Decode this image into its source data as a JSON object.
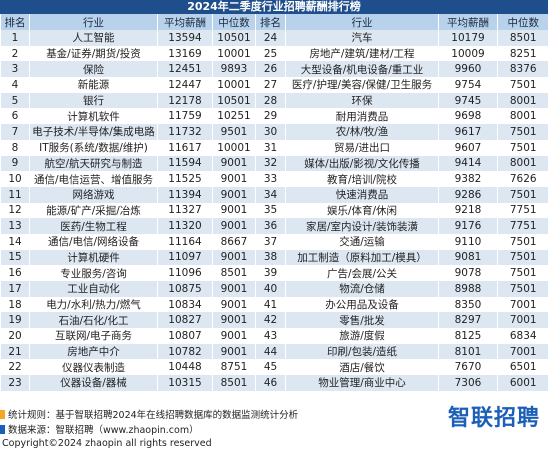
{
  "title": "2024年二季度行业招聘薪酬排行榜",
  "header": [
    "排名",
    "行业",
    "平均薪酬",
    "中位数",
    "排名",
    "行业",
    "平均薪酬",
    "中位数"
  ],
  "rows": [
    [
      1,
      "人工智能",
      13594,
      10501,
      24,
      "汽车",
      10179,
      8501
    ],
    [
      2,
      "基金/证券/期货/投资",
      13169,
      10001,
      25,
      "房地产/建筑/建材/工程",
      10009,
      8251
    ],
    [
      3,
      "保险",
      12451,
      9893,
      26,
      "大型设备/机电设备/重工业",
      9960,
      8376
    ],
    [
      4,
      "新能源",
      12447,
      10001,
      27,
      "医疗/护理/美容/保健/卫生服务",
      9754,
      7501
    ],
    [
      5,
      "银行",
      12178,
      10501,
      28,
      "环保",
      9745,
      8001
    ],
    [
      6,
      "计算机软件",
      11759,
      10251,
      29,
      "耐用消费品",
      9698,
      8001
    ],
    [
      7,
      "电子技术/半导体/集成电路",
      11732,
      9501,
      30,
      "农/林/牧/渔",
      9617,
      7501
    ],
    [
      8,
      "IT服务(系统/数据/维护)",
      11617,
      10001,
      31,
      "贸易/进出口",
      9607,
      7501
    ],
    [
      9,
      "航空/航天研究与制造",
      11594,
      9001,
      32,
      "媒体/出版/影视/文化传播",
      9414,
      8001
    ],
    [
      10,
      "通信/电信运营、增值服务",
      11525,
      9001,
      33,
      "教育/培训/院校",
      9382,
      7626
    ],
    [
      11,
      "网络游戏",
      11394,
      9001,
      34,
      "快速消费品",
      9286,
      7501
    ],
    [
      12,
      "能源/矿产/采掘/冶炼",
      11327,
      9001,
      35,
      "娱乐/体育/休闲",
      9218,
      7751
    ],
    [
      13,
      "医药/生物工程",
      11320,
      9001,
      36,
      "家居/室内设计/装饰装潢",
      9176,
      7751
    ],
    [
      14,
      "通信/电信/网络设备",
      11164,
      8667,
      37,
      "交通/运输",
      9110,
      7501
    ],
    [
      15,
      "计算机硬件",
      11097,
      9001,
      38,
      "加工制造（原料加工/模具）",
      9081,
      7501
    ],
    [
      16,
      "专业服务/咨询",
      11096,
      8501,
      39,
      "广告/会展/公关",
      9078,
      7501
    ],
    [
      17,
      "工业自动化",
      10875,
      9001,
      40,
      "物流/仓储",
      8988,
      7501
    ],
    [
      18,
      "电力/水利/热力/燃气",
      10834,
      9001,
      41,
      "办公用品及设备",
      8350,
      7001
    ],
    [
      19,
      "石油/石化/化工",
      10827,
      9001,
      42,
      "零售/批发",
      8297,
      7001
    ],
    [
      20,
      "互联网/电子商务",
      10807,
      9001,
      43,
      "旅游/度假",
      8125,
      6834
    ],
    [
      21,
      "房地产中介",
      10782,
      9001,
      44,
      "印刷/包装/造纸",
      8101,
      7001
    ],
    [
      22,
      "仪器仪表制造",
      10448,
      8751,
      45,
      "酒店/餐饮",
      7670,
      6501
    ],
    [
      23,
      "仪器设备/器械",
      10315,
      8501,
      46,
      "物业管理/商业中心",
      7306,
      6001
    ]
  ],
  "footer": {
    "rule": "统计规则：基于智联招聘2024年在线招聘数据库的数据监测统计分析",
    "source": "数据来源：智联招聘（www.zhaopin.com）",
    "copyright": "Copyright©2024 zhaopin all rights reserved"
  },
  "logo": "智联招聘"
}
